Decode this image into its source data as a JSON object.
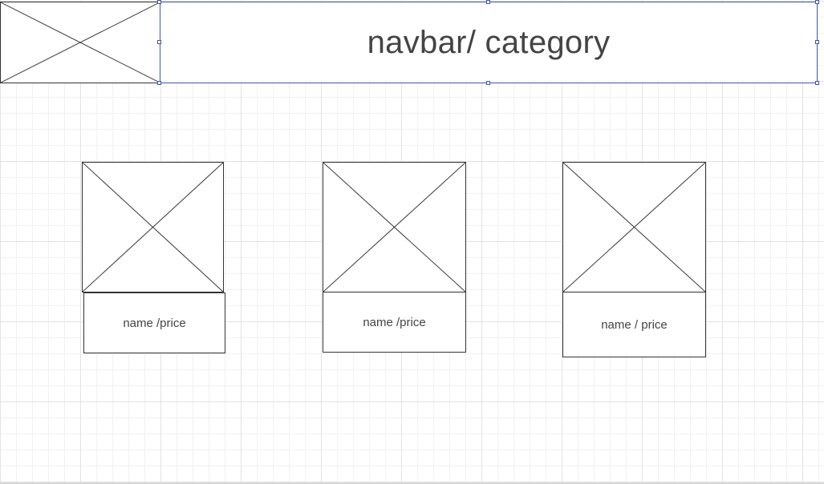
{
  "navbar": {
    "label": "navbar/ category"
  },
  "header_logo": {
    "icon": "image-placeholder-icon"
  },
  "products": [
    {
      "caption": "name /price",
      "icon": "image-placeholder-icon"
    },
    {
      "caption": "name /price",
      "icon": "image-placeholder-icon"
    },
    {
      "caption": "name / price",
      "icon": "image-placeholder-icon"
    }
  ],
  "colors": {
    "selection": "#3b56a8",
    "stroke": "#333333",
    "text": "#444444",
    "grid_major": "#e3e3e3",
    "grid_minor": "#f1f1f1"
  }
}
